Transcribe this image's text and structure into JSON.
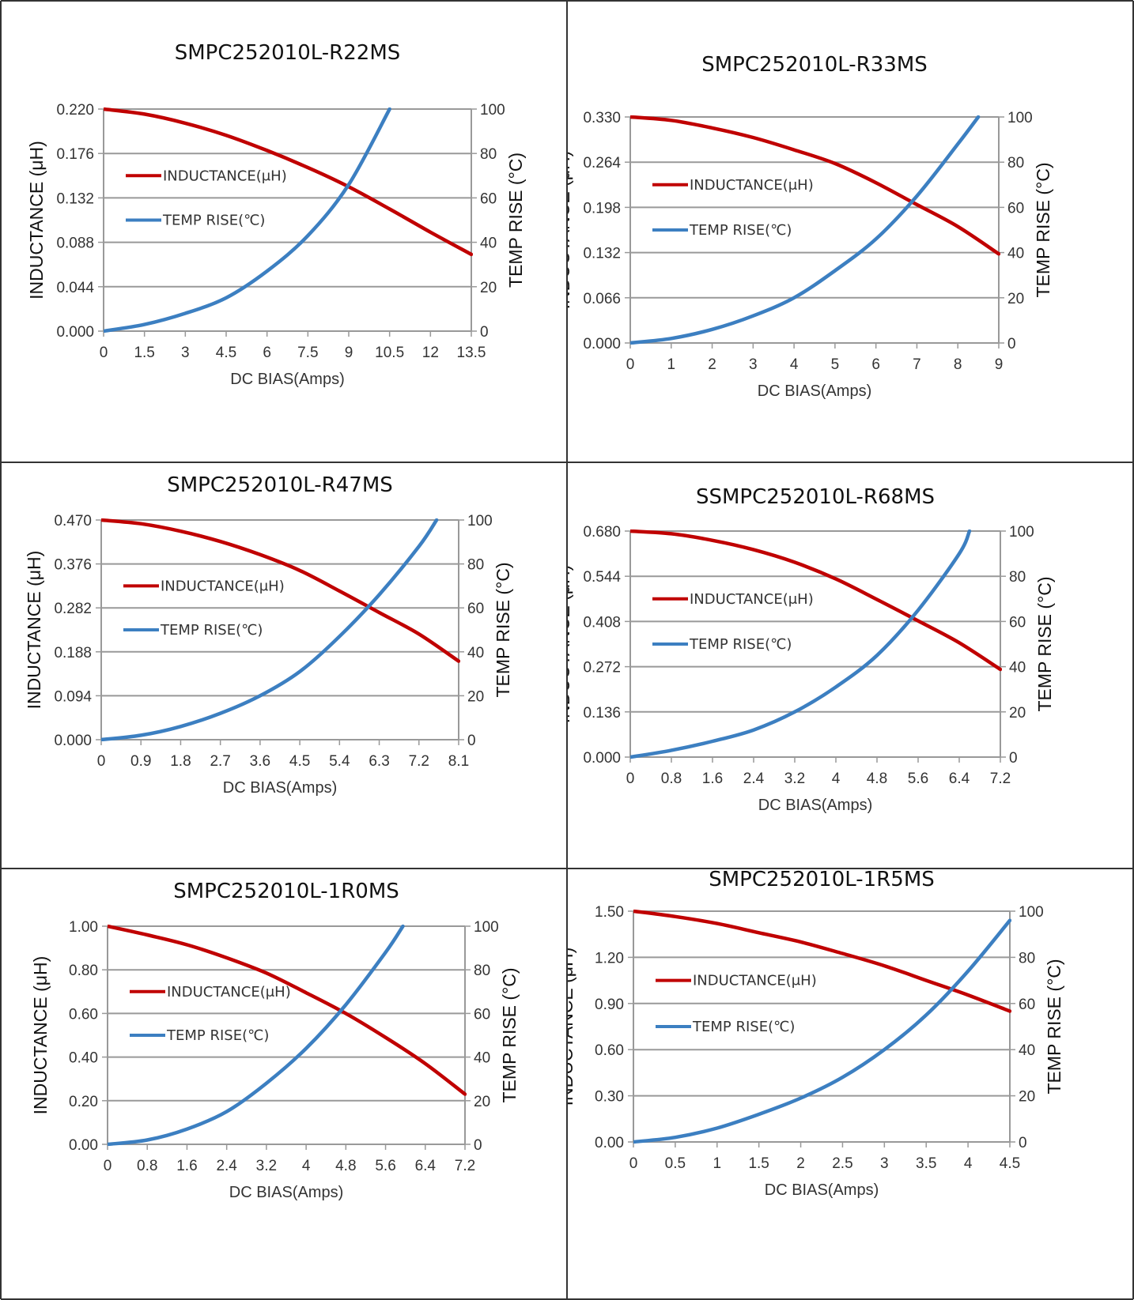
{
  "colors": {
    "inductance": "#c00000",
    "temp_rise": "#3c7fc1",
    "grid": "#999999",
    "axis": "#999999",
    "border": "#333333"
  },
  "chart_data": [
    {
      "type": "line",
      "title": "SMPC252010L-R22MS",
      "xlabel": "DC BIAS(Amps)",
      "ylabel": "INDUCTANCE (μH)",
      "y2label": "TEMP RISE (°C)",
      "xlim": [
        0,
        13.5
      ],
      "ylim": [
        0,
        0.22
      ],
      "y2lim": [
        0,
        100
      ],
      "xticks": [
        "0",
        "1.5",
        "3",
        "4.5",
        "6",
        "7.5",
        "9",
        "10.5",
        "12",
        "13.5"
      ],
      "yticks": [
        "0.000",
        "0.044",
        "0.088",
        "0.132",
        "0.176",
        "0.220"
      ],
      "y2ticks": [
        "0",
        "20",
        "40",
        "60",
        "80",
        "100"
      ],
      "legend": "left",
      "grid": true,
      "series": [
        {
          "name": "INDUCTANCE(μH)",
          "axis": "left",
          "x": [
            0,
            1.5,
            3,
            4.5,
            6,
            7.5,
            9,
            10.5,
            12,
            13.5
          ],
          "y": [
            0.22,
            0.215,
            0.206,
            0.194,
            0.179,
            0.162,
            0.143,
            0.121,
            0.098,
            0.076
          ]
        },
        {
          "name": "TEMP RISE(℃)",
          "axis": "right",
          "x": [
            0,
            1.5,
            3,
            4.5,
            6,
            7.5,
            9,
            10.5
          ],
          "y": [
            0,
            3,
            8,
            15,
            27,
            43,
            66,
            100
          ]
        }
      ]
    },
    {
      "type": "line",
      "title": "SMPC252010L-R33MS",
      "xlabel": "DC BIAS(Amps)",
      "ylabel": "INDUCTANCE (μH)",
      "y2label": "TEMP RISE (°C)",
      "xlim": [
        0,
        9
      ],
      "ylim": [
        0,
        0.33
      ],
      "y2lim": [
        0,
        100
      ],
      "xticks": [
        "0",
        "1",
        "2",
        "3",
        "4",
        "5",
        "6",
        "7",
        "8",
        "9"
      ],
      "yticks": [
        "0.000",
        "0.066",
        "0.132",
        "0.198",
        "0.264",
        "0.330"
      ],
      "y2ticks": [
        "0",
        "20",
        "40",
        "60",
        "80",
        "100"
      ],
      "legend": "left",
      "grid": true,
      "series": [
        {
          "name": "INDUCTANCE(μH)",
          "axis": "left",
          "x": [
            0,
            1,
            2,
            3,
            4,
            5,
            6,
            7,
            8,
            9
          ],
          "y": [
            0.33,
            0.325,
            0.314,
            0.3,
            0.282,
            0.262,
            0.234,
            0.202,
            0.17,
            0.13
          ]
        },
        {
          "name": "TEMP RISE(℃)",
          "axis": "right",
          "x": [
            0,
            1,
            2,
            3,
            4,
            5,
            6,
            7,
            8,
            8.5
          ],
          "y": [
            0,
            2,
            6,
            12,
            20,
            32,
            46,
            65,
            88,
            100
          ]
        }
      ]
    },
    {
      "type": "line",
      "title": "SMPC252010L-R47MS",
      "xlabel": "DC BIAS(Amps)",
      "ylabel": "INDUCTANCE (μH)",
      "y2label": "TEMP RISE (°C)",
      "xlim": [
        0,
        8.1
      ],
      "ylim": [
        0,
        0.47
      ],
      "y2lim": [
        0,
        100
      ],
      "xticks": [
        "0",
        "0.9",
        "1.8",
        "2.7",
        "3.6",
        "4.5",
        "5.4",
        "6.3",
        "7.2",
        "8.1"
      ],
      "yticks": [
        "0.000",
        "0.094",
        "0.188",
        "0.282",
        "0.376",
        "0.470"
      ],
      "y2ticks": [
        "0",
        "20",
        "40",
        "60",
        "80",
        "100"
      ],
      "legend": "left",
      "grid": true,
      "series": [
        {
          "name": "INDUCTANCE(μH)",
          "axis": "left",
          "x": [
            0,
            0.9,
            1.8,
            2.7,
            3.6,
            4.5,
            5.4,
            6.3,
            7.2,
            8.1
          ],
          "y": [
            0.47,
            0.462,
            0.446,
            0.424,
            0.396,
            0.362,
            0.318,
            0.272,
            0.226,
            0.168
          ]
        },
        {
          "name": "TEMP RISE(℃)",
          "axis": "right",
          "x": [
            0,
            0.9,
            1.8,
            2.7,
            3.6,
            4.5,
            5.4,
            6.3,
            7.2,
            7.6
          ],
          "y": [
            0,
            2,
            6,
            12,
            20,
            31,
            47,
            66,
            88,
            100
          ]
        }
      ]
    },
    {
      "type": "line",
      "title": "SSMPC252010L-R68MS",
      "xlabel": "DC BIAS(Amps)",
      "ylabel": "INDUCTANCE (μH)",
      "y2label": "TEMP RISE (°C)",
      "xlim": [
        0,
        7.2
      ],
      "ylim": [
        0,
        0.68
      ],
      "y2lim": [
        0,
        100
      ],
      "xticks": [
        "0",
        "0.8",
        "1.6",
        "2.4",
        "3.2",
        "4",
        "4.8",
        "5.6",
        "6.4",
        "7.2"
      ],
      "yticks": [
        "0.000",
        "0.136",
        "0.272",
        "0.408",
        "0.544",
        "0.680"
      ],
      "y2ticks": [
        "0",
        "20",
        "40",
        "60",
        "80",
        "100"
      ],
      "legend": "left",
      "grid": true,
      "series": [
        {
          "name": "INDUCTANCE(μH)",
          "axis": "left",
          "x": [
            0,
            0.8,
            1.6,
            2.4,
            3.2,
            4,
            4.8,
            5.6,
            6.4,
            7.2
          ],
          "y": [
            0.68,
            0.672,
            0.652,
            0.624,
            0.586,
            0.536,
            0.474,
            0.41,
            0.344,
            0.264
          ]
        },
        {
          "name": "TEMP RISE(℃)",
          "axis": "right",
          "x": [
            0,
            0.8,
            1.6,
            2.4,
            3.2,
            4,
            4.8,
            5.6,
            6.4,
            6.6
          ],
          "y": [
            0,
            3,
            7,
            12,
            20,
            31,
            45,
            65,
            90,
            100
          ]
        }
      ]
    },
    {
      "type": "line",
      "title": "SMPC252010L-1R0MS",
      "xlabel": "DC BIAS(Amps)",
      "ylabel": "INDUCTANCE (μH)",
      "y2label": "TEMP RISE (°C)",
      "xlim": [
        0,
        7.2
      ],
      "ylim": [
        0,
        1
      ],
      "y2lim": [
        0,
        100
      ],
      "xticks": [
        "0",
        "0.8",
        "1.6",
        "2.4",
        "3.2",
        "4",
        "4.8",
        "5.6",
        "6.4",
        "7.2"
      ],
      "yticks": [
        "0.00",
        "0.20",
        "0.40",
        "0.60",
        "0.80",
        "1.00"
      ],
      "y2ticks": [
        "0",
        "20",
        "40",
        "60",
        "80",
        "100"
      ],
      "legend": "left",
      "grid": true,
      "series": [
        {
          "name": "INDUCTANCE(μH)",
          "axis": "left",
          "x": [
            0,
            0.8,
            1.6,
            2.4,
            3.2,
            4,
            4.8,
            5.6,
            6.4,
            7.2
          ],
          "y": [
            1.0,
            0.96,
            0.915,
            0.855,
            0.785,
            0.695,
            0.6,
            0.49,
            0.37,
            0.23
          ]
        },
        {
          "name": "TEMP RISE(℃)",
          "axis": "right",
          "x": [
            0,
            0.8,
            1.6,
            2.4,
            3.2,
            4,
            4.8,
            5.6,
            5.95
          ],
          "y": [
            0,
            2,
            7,
            15,
            28,
            44,
            64,
            88,
            100
          ]
        }
      ]
    },
    {
      "type": "line",
      "title": "SMPC252010L-1R5MS",
      "xlabel": "DC BIAS(Amps)",
      "ylabel": "INDUCTANCE (μH)",
      "y2label": "TEMP RISE (°C)",
      "xlim": [
        0,
        4.5
      ],
      "ylim": [
        0,
        1.5
      ],
      "y2lim": [
        0,
        100
      ],
      "xticks": [
        "0",
        "0.5",
        "1",
        "1.5",
        "2",
        "2.5",
        "3",
        "3.5",
        "4",
        "4.5"
      ],
      "yticks": [
        "0.00",
        "0.30",
        "0.60",
        "0.90",
        "1.20",
        "1.50"
      ],
      "y2ticks": [
        "0",
        "20",
        "40",
        "60",
        "80",
        "100"
      ],
      "legend": "left",
      "grid": true,
      "series": [
        {
          "name": "INDUCTANCE(μH)",
          "axis": "left",
          "x": [
            0,
            0.5,
            1,
            1.5,
            2,
            2.5,
            3,
            3.5,
            4,
            4.5
          ],
          "y": [
            1.5,
            1.465,
            1.42,
            1.36,
            1.3,
            1.225,
            1.145,
            1.05,
            0.955,
            0.85
          ]
        },
        {
          "name": "TEMP RISE(℃)",
          "axis": "right",
          "x": [
            0,
            0.5,
            1,
            1.5,
            2,
            2.5,
            3,
            3.5,
            4,
            4.5
          ],
          "y": [
            0,
            2,
            6,
            12,
            19,
            28,
            40,
            55,
            74,
            96
          ]
        }
      ]
    }
  ]
}
